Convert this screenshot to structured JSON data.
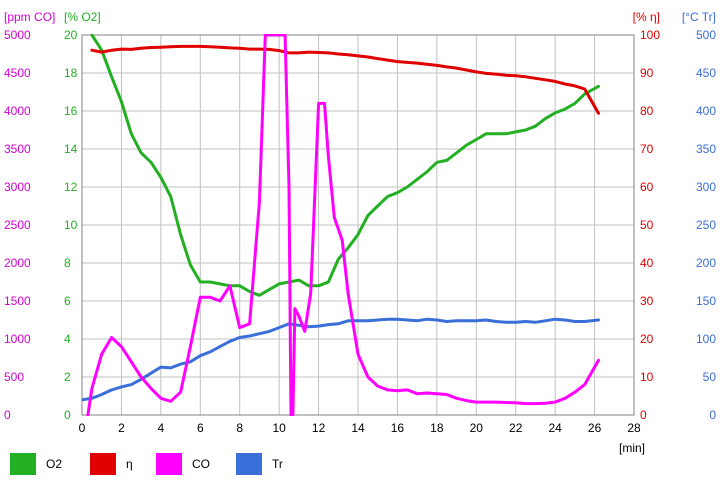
{
  "chart_data": {
    "type": "line",
    "x_unit_label": "[min]",
    "x_axis": {
      "min": 0,
      "max": 28,
      "ticks": [
        0,
        2,
        4,
        6,
        8,
        10,
        12,
        14,
        16,
        18,
        20,
        22,
        24,
        26,
        28
      ]
    },
    "axes": [
      {
        "id": "co",
        "label": "[ppm CO]",
        "color": "#d400d4",
        "side": "left-outer",
        "min": 0,
        "max": 5000,
        "ticks": [
          0,
          500,
          1000,
          1500,
          2000,
          2500,
          3000,
          3500,
          4000,
          4500,
          5000
        ]
      },
      {
        "id": "o2",
        "label": "[% O2]",
        "color": "#22b022",
        "side": "left-inner",
        "min": 0,
        "max": 20,
        "ticks": [
          0,
          2,
          4,
          6,
          8,
          10,
          12,
          14,
          16,
          18,
          20
        ]
      },
      {
        "id": "eta",
        "label": "[% η]",
        "color": "#e00000",
        "side": "right-inner",
        "min": 0,
        "max": 100,
        "ticks": [
          0,
          10,
          20,
          30,
          40,
          50,
          60,
          70,
          80,
          90,
          100
        ]
      },
      {
        "id": "tr",
        "label": "[°C Tr]",
        "color": "#3a6ed8",
        "side": "right-outer",
        "min": 0,
        "max": 500,
        "ticks": [
          0,
          50,
          100,
          150,
          200,
          250,
          300,
          350,
          400,
          450,
          500
        ]
      }
    ],
    "grid": true,
    "legend_position": "bottom-left",
    "series": [
      {
        "name": "O2",
        "axis": "o2",
        "color": "#22b022",
        "points": [
          [
            0.5,
            20
          ],
          [
            1.0,
            19.2
          ],
          [
            1.5,
            17.8
          ],
          [
            2.0,
            16.5
          ],
          [
            2.5,
            14.8
          ],
          [
            3.0,
            13.8
          ],
          [
            3.5,
            13.3
          ],
          [
            4.0,
            12.5
          ],
          [
            4.5,
            11.5
          ],
          [
            5.0,
            9.5
          ],
          [
            5.5,
            7.9
          ],
          [
            6.0,
            7.0
          ],
          [
            6.5,
            7.0
          ],
          [
            7.0,
            6.9
          ],
          [
            7.5,
            6.8
          ],
          [
            8.0,
            6.8
          ],
          [
            8.5,
            6.5
          ],
          [
            9.0,
            6.3
          ],
          [
            9.5,
            6.6
          ],
          [
            10.0,
            6.9
          ],
          [
            10.5,
            7.0
          ],
          [
            11.0,
            7.1
          ],
          [
            11.5,
            6.8
          ],
          [
            12.0,
            6.8
          ],
          [
            12.5,
            7.0
          ],
          [
            13.0,
            8.2
          ],
          [
            13.5,
            8.8
          ],
          [
            14.0,
            9.5
          ],
          [
            14.5,
            10.5
          ],
          [
            15.0,
            11.0
          ],
          [
            15.5,
            11.5
          ],
          [
            16.0,
            11.7
          ],
          [
            16.5,
            12.0
          ],
          [
            17.0,
            12.4
          ],
          [
            17.5,
            12.8
          ],
          [
            18.0,
            13.3
          ],
          [
            18.5,
            13.4
          ],
          [
            19.0,
            13.8
          ],
          [
            19.5,
            14.2
          ],
          [
            20.0,
            14.5
          ],
          [
            20.5,
            14.8
          ],
          [
            21.0,
            14.8
          ],
          [
            21.5,
            14.8
          ],
          [
            22.0,
            14.9
          ],
          [
            22.5,
            15.0
          ],
          [
            23.0,
            15.2
          ],
          [
            23.5,
            15.6
          ],
          [
            24.0,
            15.9
          ],
          [
            24.5,
            16.1
          ],
          [
            25.0,
            16.4
          ],
          [
            25.5,
            16.9
          ],
          [
            26.2,
            17.3
          ]
        ]
      },
      {
        "name": "η",
        "axis": "eta",
        "color": "#e00000",
        "points": [
          [
            0.5,
            96
          ],
          [
            1.0,
            95.5
          ],
          [
            1.5,
            96
          ],
          [
            2.0,
            96.3
          ],
          [
            2.5,
            96.2
          ],
          [
            3.0,
            96.5
          ],
          [
            3.5,
            96.7
          ],
          [
            4.0,
            96.8
          ],
          [
            4.5,
            96.9
          ],
          [
            5.0,
            97
          ],
          [
            5.5,
            97
          ],
          [
            6.0,
            97
          ],
          [
            6.5,
            96.9
          ],
          [
            7.0,
            96.8
          ],
          [
            7.5,
            96.6
          ],
          [
            8.0,
            96.5
          ],
          [
            8.5,
            96.3
          ],
          [
            9.0,
            96.3
          ],
          [
            9.5,
            96.2
          ],
          [
            10.0,
            95.9
          ],
          [
            10.5,
            95.3
          ],
          [
            11.0,
            95.3
          ],
          [
            11.5,
            95.5
          ],
          [
            12.0,
            95.4
          ],
          [
            12.5,
            95.3
          ],
          [
            13.0,
            95.0
          ],
          [
            13.5,
            94.8
          ],
          [
            14.0,
            94.5
          ],
          [
            14.5,
            94.2
          ],
          [
            15.0,
            93.8
          ],
          [
            15.5,
            93.4
          ],
          [
            16.0,
            93.0
          ],
          [
            16.5,
            92.8
          ],
          [
            17.0,
            92.6
          ],
          [
            17.5,
            92.3
          ],
          [
            18.0,
            92.0
          ],
          [
            18.5,
            91.6
          ],
          [
            19.0,
            91.3
          ],
          [
            19.5,
            90.8
          ],
          [
            20.0,
            90.3
          ],
          [
            20.5,
            89.9
          ],
          [
            21.0,
            89.7
          ],
          [
            21.5,
            89.4
          ],
          [
            22.0,
            89.3
          ],
          [
            22.5,
            89.0
          ],
          [
            23.0,
            88.6
          ],
          [
            23.5,
            88.2
          ],
          [
            24.0,
            87.8
          ],
          [
            24.5,
            87.1
          ],
          [
            25.0,
            86.6
          ],
          [
            25.5,
            85.8
          ],
          [
            26.2,
            79.4
          ]
        ]
      },
      {
        "name": "CO",
        "axis": "co",
        "color": "#ff00ff",
        "points": [
          [
            0.3,
            0
          ],
          [
            0.5,
            350
          ],
          [
            1.0,
            800
          ],
          [
            1.5,
            1020
          ],
          [
            2.0,
            900
          ],
          [
            2.5,
            700
          ],
          [
            3.0,
            500
          ],
          [
            3.5,
            350
          ],
          [
            4.0,
            220
          ],
          [
            4.5,
            180
          ],
          [
            5.0,
            300
          ],
          [
            5.5,
            900
          ],
          [
            6.0,
            1550
          ],
          [
            6.5,
            1550
          ],
          [
            7.0,
            1500
          ],
          [
            7.5,
            1700
          ],
          [
            8.0,
            1150
          ],
          [
            8.5,
            1200
          ],
          [
            9.0,
            2800
          ],
          [
            9.3,
            5000
          ],
          [
            10.3,
            5000
          ],
          [
            10.5,
            3000
          ],
          [
            10.6,
            0
          ],
          [
            10.7,
            0
          ],
          [
            10.8,
            1400
          ],
          [
            11.0,
            1300
          ],
          [
            11.3,
            1100
          ],
          [
            11.6,
            1600
          ],
          [
            12.0,
            4100
          ],
          [
            12.3,
            4100
          ],
          [
            12.5,
            3400
          ],
          [
            12.8,
            2600
          ],
          [
            13.2,
            2300
          ],
          [
            13.5,
            1600
          ],
          [
            14.0,
            800
          ],
          [
            14.5,
            500
          ],
          [
            15.0,
            380
          ],
          [
            15.5,
            330
          ],
          [
            16.0,
            320
          ],
          [
            16.5,
            330
          ],
          [
            17.0,
            280
          ],
          [
            17.5,
            290
          ],
          [
            18.0,
            280
          ],
          [
            18.5,
            270
          ],
          [
            19.0,
            220
          ],
          [
            19.5,
            190
          ],
          [
            20.0,
            170
          ],
          [
            20.5,
            170
          ],
          [
            21.0,
            170
          ],
          [
            21.5,
            165
          ],
          [
            22.0,
            160
          ],
          [
            22.5,
            150
          ],
          [
            23.0,
            150
          ],
          [
            23.5,
            155
          ],
          [
            24.0,
            170
          ],
          [
            24.5,
            220
          ],
          [
            25.0,
            300
          ],
          [
            25.5,
            400
          ],
          [
            26.2,
            720
          ]
        ]
      },
      {
        "name": "Tr",
        "axis": "tr",
        "color": "#3a6ed8",
        "points": [
          [
            0,
            20
          ],
          [
            0.5,
            22
          ],
          [
            1.0,
            27
          ],
          [
            1.5,
            33
          ],
          [
            2.0,
            37
          ],
          [
            2.5,
            40
          ],
          [
            3.0,
            47
          ],
          [
            3.5,
            55
          ],
          [
            4.0,
            63
          ],
          [
            4.5,
            62
          ],
          [
            5.0,
            67
          ],
          [
            5.5,
            70
          ],
          [
            6.0,
            78
          ],
          [
            6.5,
            83
          ],
          [
            7.0,
            90
          ],
          [
            7.5,
            97
          ],
          [
            8.0,
            102
          ],
          [
            8.5,
            104
          ],
          [
            9.0,
            107
          ],
          [
            9.5,
            110
          ],
          [
            10.0,
            115
          ],
          [
            10.5,
            120
          ],
          [
            11.0,
            118
          ],
          [
            11.5,
            116
          ],
          [
            12.0,
            117
          ],
          [
            12.5,
            119
          ],
          [
            13.0,
            120
          ],
          [
            13.5,
            124
          ],
          [
            14.0,
            124
          ],
          [
            14.5,
            124
          ],
          [
            15.0,
            125
          ],
          [
            15.5,
            126
          ],
          [
            16.0,
            126
          ],
          [
            16.5,
            125
          ],
          [
            17.0,
            124
          ],
          [
            17.5,
            126
          ],
          [
            18.0,
            125
          ],
          [
            18.5,
            123
          ],
          [
            19.0,
            124
          ],
          [
            19.5,
            124
          ],
          [
            20.0,
            124
          ],
          [
            20.5,
            125
          ],
          [
            21.0,
            123
          ],
          [
            21.5,
            122
          ],
          [
            22.0,
            122
          ],
          [
            22.5,
            123
          ],
          [
            23.0,
            122
          ],
          [
            23.5,
            124
          ],
          [
            24.0,
            126
          ],
          [
            24.5,
            125
          ],
          [
            25.0,
            123
          ],
          [
            25.5,
            123
          ],
          [
            26.2,
            125
          ]
        ]
      }
    ],
    "legend": [
      {
        "label": "O2",
        "color": "#22b022"
      },
      {
        "label": "η",
        "color": "#e00000"
      },
      {
        "label": "CO",
        "color": "#ff00ff"
      },
      {
        "label": "Tr",
        "color": "#3a6ed8"
      }
    ]
  }
}
